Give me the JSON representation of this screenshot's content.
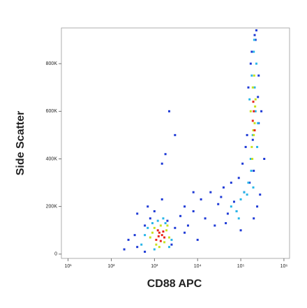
{
  "chart_data": {
    "type": "scatter",
    "x_label": "CD88 APC",
    "y_label": "Side Scatter",
    "xscale": "log",
    "xlim": [
      7,
      1350000
    ],
    "ylim": [
      -18000,
      950000
    ],
    "xticks": [
      {
        "value": 10,
        "label": "10¹"
      },
      {
        "value": 100,
        "label": "10²"
      },
      {
        "value": 1000,
        "label": "10³"
      },
      {
        "value": 10000,
        "label": "10⁴"
      },
      {
        "value": 100000,
        "label": "10⁵"
      },
      {
        "value": 1000000,
        "label": "10⁶"
      }
    ],
    "yticks": [
      0,
      {
        "value": 200000,
        "label": "200K"
      },
      {
        "value": 400000,
        "label": "400K"
      },
      {
        "value": 600000,
        "label": "600K"
      },
      {
        "value": 800000,
        "label": "800K"
      }
    ],
    "series": [
      {
        "color": "#1f3bd6",
        "x": [
          250,
          400,
          600,
          800,
          2500,
          3000,
          4000,
          200,
          350,
          700,
          1000,
          1500,
          2000,
          5000,
          6000,
          8000,
          12000,
          15000,
          20000,
          30000,
          40000,
          50000,
          60000,
          25000,
          35000,
          70000,
          90000,
          110000,
          130000,
          150000,
          180000,
          220000,
          260000,
          300000,
          350000,
          120000,
          160000,
          200000,
          240000,
          280000,
          100000,
          140000,
          170000,
          210000,
          250000,
          3000,
          1800,
          2200,
          1500,
          5000,
          8000,
          400,
          600,
          10000,
          45000,
          80000,
          200000,
          230000,
          190000,
          260000
        ],
        "values": [
          60000,
          30000,
          120000,
          150000,
          40000,
          110000,
          160000,
          20000,
          80000,
          200000,
          180000,
          230000,
          140000,
          200000,
          120000,
          180000,
          230000,
          150000,
          260000,
          210000,
          280000,
          170000,
          300000,
          120000,
          240000,
          220000,
          320000,
          380000,
          450000,
          700000,
          850000,
          900000,
          750000,
          600000,
          400000,
          260000,
          300000,
          150000,
          200000,
          250000,
          100000,
          500000,
          800000,
          920000,
          660000,
          500000,
          420000,
          600000,
          380000,
          90000,
          260000,
          170000,
          10000,
          60000,
          130000,
          180000,
          350000,
          940000,
          480000,
          550000
        ]
      },
      {
        "color": "#29b6e8",
        "x": [
          500,
          700,
          900,
          1200,
          1800,
          2500,
          600,
          2200,
          1000,
          1600,
          150000,
          170000,
          190000,
          210000,
          230000,
          160000,
          180000,
          200000,
          220000,
          240000,
          140000,
          250000,
          175000,
          205000,
          195000,
          60000,
          80000,
          100000,
          120000,
          90000
        ],
        "values": [
          40000,
          110000,
          130000,
          140000,
          130000,
          60000,
          80000,
          30000,
          20000,
          150000,
          300000,
          400000,
          500000,
          700000,
          800000,
          650000,
          750000,
          850000,
          600000,
          450000,
          250000,
          550000,
          350000,
          900000,
          280000,
          200000,
          180000,
          230000,
          260000,
          150000
        ]
      },
      {
        "color": "#c9e21f",
        "x": [
          800,
          1000,
          1400,
          1900,
          2200,
          1100,
          1700,
          900,
          1300,
          2000,
          180000,
          200000,
          190000,
          210000,
          170000,
          220000,
          185000,
          205000,
          195000,
          215000
        ],
        "values": [
          70000,
          110000,
          120000,
          100000,
          70000,
          40000,
          50000,
          90000,
          30000,
          120000,
          450000,
          500000,
          700000,
          550000,
          600000,
          650000,
          400000,
          750000,
          520000,
          620000
        ]
      },
      {
        "color": "#e8261b",
        "x": [
          1100,
          1300,
          1500,
          1700,
          1200,
          1400,
          1600,
          1250,
          190000,
          200000,
          210000,
          195000
        ],
        "values": [
          60000,
          90000,
          80000,
          70000,
          100000,
          55000,
          95000,
          75000,
          560000,
          600000,
          520000,
          640000
        ]
      }
    ]
  }
}
